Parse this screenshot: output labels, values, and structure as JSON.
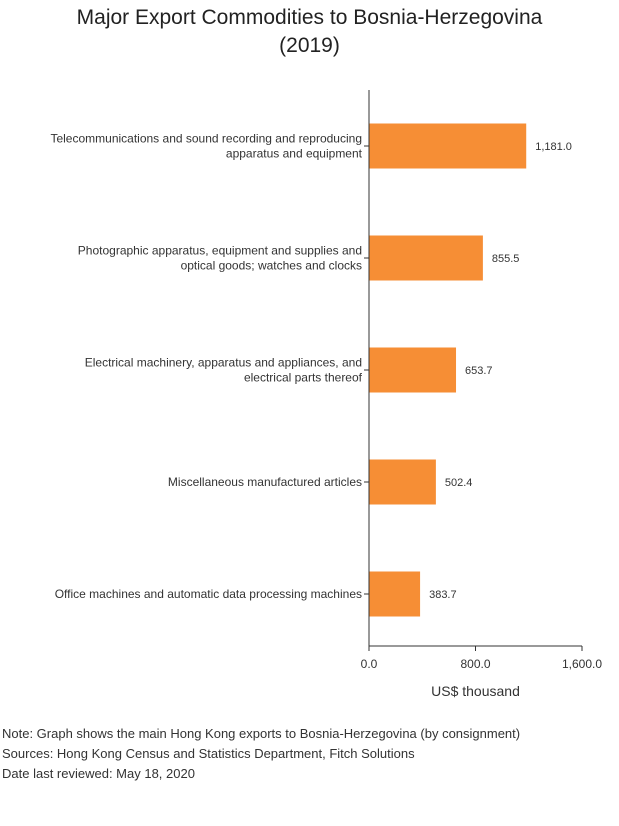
{
  "chart_data": {
    "type": "bar",
    "orientation": "horizontal",
    "title_lines": [
      "Major Export Commodities to Bosnia-Herzegovina",
      "(2019)"
    ],
    "categories": [
      [
        "Telecommunications and sound recording and reproducing",
        "apparatus and equipment"
      ],
      [
        "Photographic apparatus, equipment and supplies and",
        "optical goods; watches and clocks"
      ],
      [
        "Electrical machinery, apparatus and appliances, and",
        "electrical parts thereof"
      ],
      [
        "Miscellaneous manufactured articles"
      ],
      [
        "Office machines and automatic data processing machines"
      ]
    ],
    "values": [
      1181.0,
      855.5,
      653.7,
      502.4,
      383.7
    ],
    "value_labels": [
      "1,181.0",
      "855.5",
      "653.7",
      "502.4",
      "383.7"
    ],
    "xlim": [
      0,
      1600
    ],
    "ticks": [
      0,
      800,
      1600
    ],
    "tick_labels": [
      "0.0",
      "800.0",
      "1,600.0"
    ],
    "xlabel": "US$ thousand",
    "bar_color": "#f68e35",
    "grid": false
  },
  "notes": {
    "note": "Note: Graph shows the main Hong Kong exports to Bosnia-Herzegovina (by consignment)",
    "sources": "Sources: Hong Kong Census and Statistics Department, Fitch Solutions",
    "date": "Date last reviewed: May 18, 2020"
  }
}
